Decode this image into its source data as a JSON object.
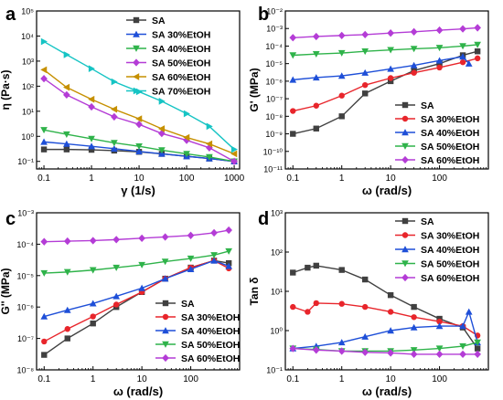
{
  "chart_data": [
    {
      "panel": "a",
      "type": "line",
      "xlabel": "γ (1/s)",
      "ylabel": "η (Pa·s)",
      "xscale": "log",
      "yscale": "log",
      "xlim": [
        0.07,
        1300
      ],
      "ylim": [
        0.05,
        100000
      ],
      "xticks": [
        0.1,
        1,
        10,
        100,
        1000
      ],
      "xtick_labels": [
        "0.1",
        "1",
        "10",
        "100",
        "1000"
      ],
      "yticks": [
        0.1,
        1,
        10,
        100,
        1000,
        10000,
        100000
      ],
      "ytick_labels": [
        "10⁻¹",
        "10⁰",
        "10¹",
        "10²",
        "10³",
        "10⁴",
        "10⁵"
      ],
      "legend": "top-right",
      "series": [
        {
          "name": "SA",
          "color": "#404040",
          "marker": "square",
          "x": [
            0.1,
            0.3,
            1,
            3,
            10,
            30,
            100,
            300,
            1000
          ],
          "y": [
            0.3,
            0.3,
            0.29,
            0.27,
            0.24,
            0.2,
            0.16,
            0.13,
            0.1
          ]
        },
        {
          "name": "SA 30%EtOH",
          "color": "#1e4fd8",
          "marker": "triangle-up",
          "x": [
            0.1,
            0.3,
            1,
            3,
            10,
            30,
            100,
            300,
            1000
          ],
          "y": [
            0.6,
            0.5,
            0.4,
            0.32,
            0.25,
            0.2,
            0.16,
            0.13,
            0.1
          ]
        },
        {
          "name": "SA 40%EtOH",
          "color": "#2fb34a",
          "marker": "triangle-down",
          "x": [
            0.1,
            0.3,
            1,
            3,
            10,
            30,
            100,
            300,
            1000
          ],
          "y": [
            1.8,
            1.2,
            0.8,
            0.55,
            0.4,
            0.28,
            0.2,
            0.15,
            0.1
          ]
        },
        {
          "name": "SA 50%EtOH",
          "color": "#b43cd6",
          "marker": "diamond",
          "x": [
            0.1,
            0.3,
            1,
            3,
            10,
            30,
            100,
            300,
            1000
          ],
          "y": [
            200,
            45,
            15,
            6,
            3,
            1.3,
            0.7,
            0.35,
            0.1
          ]
        },
        {
          "name": "SA 60%EtOH",
          "color": "#c69000",
          "marker": "triangle-left",
          "x": [
            0.1,
            0.3,
            1,
            3,
            10,
            30,
            100,
            300,
            1000
          ],
          "y": [
            450,
            90,
            30,
            12,
            5,
            2,
            0.9,
            0.5,
            0.2
          ]
        },
        {
          "name": "SA 70%EtOH",
          "color": "#16c4c4",
          "marker": "triangle-right",
          "x": [
            0.1,
            0.3,
            1,
            3,
            10,
            30,
            100,
            300,
            1000
          ],
          "y": [
            6000,
            1800,
            500,
            150,
            60,
            25,
            8,
            2.5,
            0.3
          ]
        }
      ]
    },
    {
      "panel": "b",
      "type": "line",
      "xlabel": "ω (rad/s)",
      "ylabel": "G' (MPa)",
      "xscale": "log",
      "yscale": "log",
      "xlim": [
        0.07,
        1000
      ],
      "ylim": [
        1e-11,
        0.01
      ],
      "xticks": [
        0.1,
        1,
        10,
        100
      ],
      "xtick_labels": [
        "0.1",
        "1",
        "10",
        "100"
      ],
      "yticks": [
        1e-11,
        1e-10,
        1e-09,
        1e-08,
        1e-07,
        1e-06,
        1e-05,
        0.0001,
        0.001,
        0.01
      ],
      "ytick_labels": [
        "10⁻¹¹",
        "10⁻¹⁰",
        "10⁻⁹",
        "10⁻⁸",
        "10⁻⁷",
        "10⁻⁶",
        "10⁻⁵",
        "10⁻⁴",
        "10⁻³",
        "10⁻²"
      ],
      "legend": "bottom-right",
      "series": [
        {
          "name": "SA",
          "color": "#404040",
          "marker": "square",
          "x": [
            0.1,
            0.3,
            1,
            3,
            10,
            30,
            100,
            300,
            600
          ],
          "y": [
            1e-09,
            2e-09,
            1e-08,
            2e-07,
            1e-06,
            4e-06,
            1e-05,
            3e-05,
            5e-05
          ]
        },
        {
          "name": "SA 30%EtOH",
          "color": "#e8252b",
          "marker": "circle",
          "x": [
            0.1,
            0.3,
            1,
            3,
            10,
            30,
            100,
            300,
            600
          ],
          "y": [
            2e-08,
            4e-08,
            1.5e-07,
            6e-07,
            1.5e-06,
            3e-06,
            6e-06,
            1.2e-05,
            2e-05
          ]
        },
        {
          "name": "SA 40%EtOH",
          "color": "#1e4fd8",
          "marker": "triangle-up",
          "x": [
            0.1,
            0.3,
            1,
            3,
            10,
            30,
            100,
            300,
            400
          ],
          "y": [
            1.2e-06,
            1.6e-06,
            2e-06,
            3e-06,
            5e-06,
            8e-06,
            1.5e-05,
            2.5e-05,
            1e-05
          ]
        },
        {
          "name": "SA 50%EtOH",
          "color": "#2fb34a",
          "marker": "triangle-down",
          "x": [
            0.1,
            0.3,
            1,
            3,
            10,
            30,
            100,
            300,
            600
          ],
          "y": [
            3e-05,
            3.5e-05,
            4e-05,
            5e-05,
            6e-05,
            7e-05,
            8e-05,
            0.0001,
            0.00012
          ]
        },
        {
          "name": "SA 60%EtOH",
          "color": "#b43cd6",
          "marker": "diamond",
          "x": [
            0.1,
            0.3,
            1,
            3,
            10,
            30,
            100,
            300,
            600
          ],
          "y": [
            0.0003,
            0.00035,
            0.0004,
            0.00045,
            0.00055,
            0.00065,
            0.0008,
            0.00095,
            0.0011
          ]
        }
      ]
    },
    {
      "panel": "c",
      "type": "line",
      "xlabel": "ω (rad/s)",
      "ylabel": "G'' (MPa)",
      "xscale": "log",
      "yscale": "log",
      "xlim": [
        0.07,
        1000
      ],
      "ylim": [
        1e-08,
        0.001
      ],
      "xticks": [
        0.1,
        1,
        10,
        100
      ],
      "xtick_labels": [
        "0.1",
        "1",
        "10",
        "100"
      ],
      "yticks": [
        1e-08,
        1e-07,
        1e-06,
        1e-05,
        0.0001,
        0.001
      ],
      "ytick_labels": [
        "10⁻⁸",
        "10⁻⁷",
        "10⁻⁶",
        "10⁻⁵",
        "10⁻⁴",
        "10⁻³"
      ],
      "legend": "bottom-right",
      "series": [
        {
          "name": "SA",
          "color": "#404040",
          "marker": "square",
          "x": [
            0.1,
            0.3,
            1,
            3,
            10,
            30,
            100,
            300,
            600
          ],
          "y": [
            3e-08,
            1e-07,
            3e-07,
            1e-06,
            3e-06,
            8e-06,
            1.8e-05,
            3e-05,
            2.5e-05
          ]
        },
        {
          "name": "SA 30%EtOH",
          "color": "#e8252b",
          "marker": "circle",
          "x": [
            0.1,
            0.3,
            1,
            3,
            10,
            30,
            100,
            300,
            600
          ],
          "y": [
            8e-08,
            2e-07,
            5e-07,
            1.2e-06,
            3e-06,
            8e-06,
            1.8e-05,
            3e-05,
            1.7e-05
          ]
        },
        {
          "name": "SA 40%EtOH",
          "color": "#1e4fd8",
          "marker": "triangle-up",
          "x": [
            0.1,
            0.3,
            1,
            3,
            10,
            30,
            100,
            300,
            600
          ],
          "y": [
            5e-07,
            8e-07,
            1.3e-06,
            2.2e-06,
            4e-06,
            8e-06,
            1.6e-05,
            3e-05,
            2e-05
          ]
        },
        {
          "name": "SA 50%EtOH",
          "color": "#2fb34a",
          "marker": "triangle-down",
          "x": [
            0.1,
            0.3,
            1,
            3,
            10,
            30,
            100,
            300,
            600
          ],
          "y": [
            1.2e-05,
            1.3e-05,
            1.5e-05,
            1.8e-05,
            2.2e-05,
            2.8e-05,
            3.5e-05,
            4.5e-05,
            6e-05
          ]
        },
        {
          "name": "SA 60%EtOH",
          "color": "#b43cd6",
          "marker": "diamond",
          "x": [
            0.1,
            0.3,
            1,
            3,
            10,
            30,
            100,
            300,
            600
          ],
          "y": [
            0.00012,
            0.000125,
            0.00013,
            0.00014,
            0.000155,
            0.00017,
            0.00019,
            0.00023,
            0.00028
          ]
        }
      ]
    },
    {
      "panel": "d",
      "type": "line",
      "xlabel": "ω (rad/s)",
      "ylabel": "Tan δ",
      "xscale": "log",
      "yscale": "log",
      "xlim": [
        0.07,
        1000
      ],
      "ylim": [
        0.1,
        1000
      ],
      "xticks": [
        0.1,
        1,
        10,
        100
      ],
      "xtick_labels": [
        "0.1",
        "1",
        "10",
        "100"
      ],
      "yticks": [
        0.1,
        1,
        10,
        100,
        1000
      ],
      "ytick_labels": [
        "10⁻¹",
        "10⁰",
        "10¹",
        "10²",
        "10³"
      ],
      "legend": "top-right",
      "series": [
        {
          "name": "SA",
          "color": "#404040",
          "marker": "square",
          "x": [
            0.1,
            0.2,
            0.3,
            1,
            3,
            10,
            30,
            100,
            300,
            600
          ],
          "y": [
            30,
            40,
            45,
            35,
            20,
            8,
            4,
            2,
            1.2,
            0.35
          ]
        },
        {
          "name": "SA 30%EtOH",
          "color": "#e8252b",
          "marker": "circle",
          "x": [
            0.1,
            0.2,
            0.3,
            1,
            3,
            10,
            30,
            100,
            300,
            600
          ],
          "y": [
            4,
            3,
            5,
            4.8,
            4,
            3,
            2.2,
            1.7,
            1.3,
            0.75
          ]
        },
        {
          "name": "SA 40%EtOH",
          "color": "#1e4fd8",
          "marker": "triangle-up",
          "x": [
            0.1,
            0.3,
            1,
            3,
            10,
            30,
            100,
            300,
            400,
            600
          ],
          "y": [
            0.35,
            0.4,
            0.5,
            0.7,
            1,
            1.2,
            1.3,
            1.3,
            3,
            0.5
          ]
        },
        {
          "name": "SA 50%EtOH",
          "color": "#2fb34a",
          "marker": "triangle-down",
          "x": [
            0.1,
            0.3,
            1,
            3,
            10,
            30,
            100,
            300,
            600
          ],
          "y": [
            0.35,
            0.33,
            0.3,
            0.3,
            0.3,
            0.32,
            0.35,
            0.4,
            0.5
          ]
        },
        {
          "name": "SA 60%EtOH",
          "color": "#b43cd6",
          "marker": "diamond",
          "x": [
            0.1,
            0.3,
            1,
            3,
            10,
            30,
            100,
            300,
            600
          ],
          "y": [
            0.35,
            0.32,
            0.3,
            0.28,
            0.27,
            0.25,
            0.25,
            0.25,
            0.25
          ]
        }
      ]
    }
  ]
}
